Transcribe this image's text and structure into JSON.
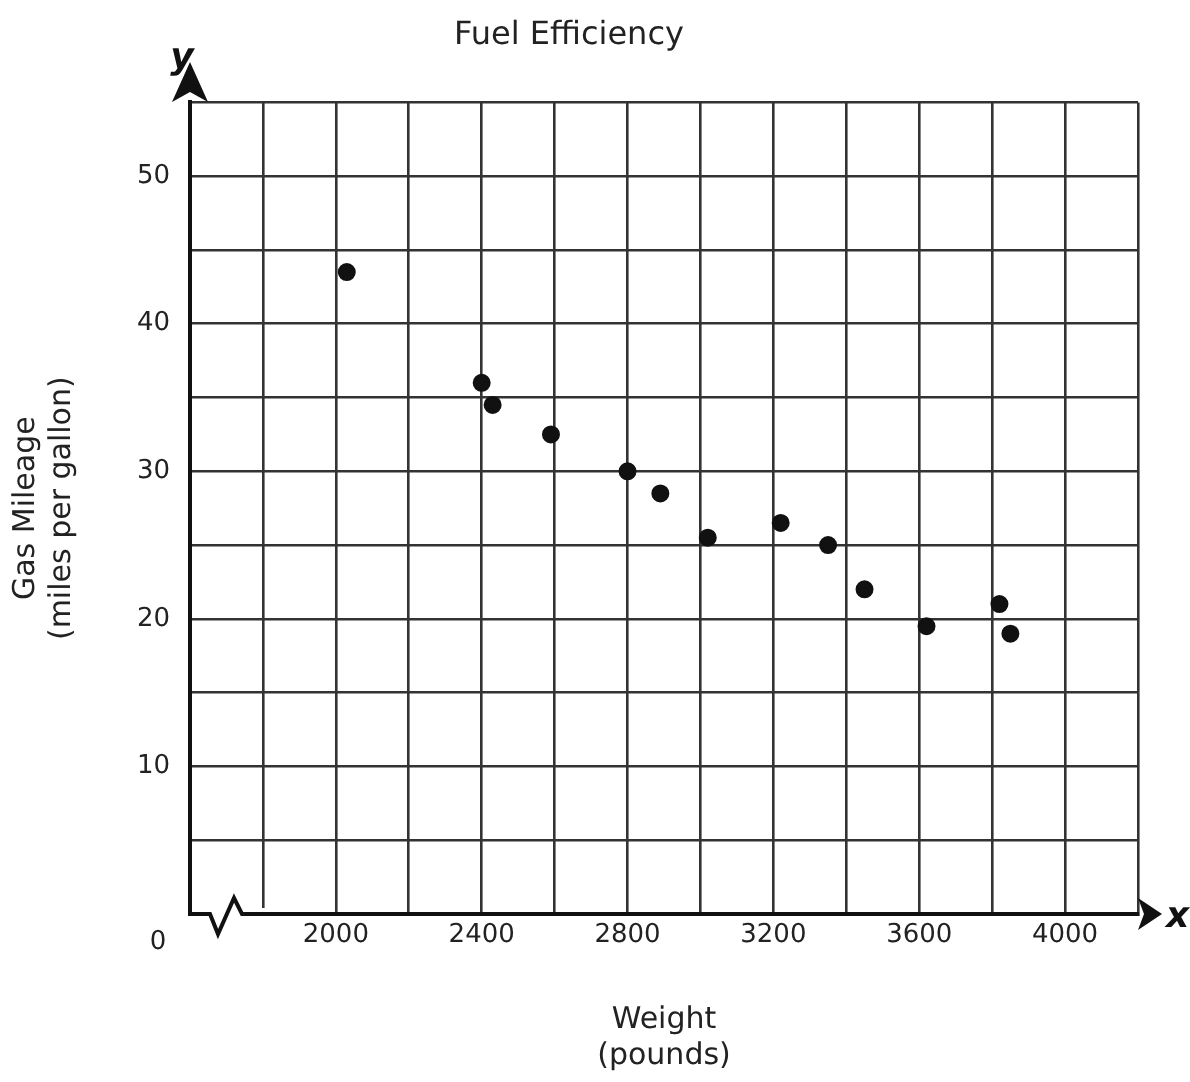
{
  "chart_data": {
    "type": "scatter",
    "title": "Fuel Efficiency",
    "xlabel": "Weight\n(pounds)",
    "ylabel": "Gas Mileage\n(miles per gallon)",
    "annotations": [
      "x",
      "y",
      "0"
    ],
    "series": [
      {
        "color": "#111111",
        "x": [
          2030,
          2400,
          2430,
          2590,
          2800,
          2890,
          3020,
          3220,
          3350,
          3450,
          3620,
          3820,
          3850
        ],
        "values": [
          43.5,
          36,
          34.5,
          32.5,
          30,
          28.5,
          25.5,
          26.5,
          25,
          22,
          19.5,
          21,
          19
        ]
      }
    ],
    "marker": "circle",
    "xlim": [
      1600,
      4200
    ],
    "xticks": [
      {
        "value": 1600,
        "label": null
      },
      {
        "value": 1800,
        "label": null
      },
      2000,
      {
        "value": 2200,
        "label": null
      },
      2400,
      {
        "value": 2600,
        "label": null
      },
      2800,
      {
        "value": 3000,
        "label": null
      },
      3200,
      {
        "value": 3400,
        "label": null
      },
      3600,
      {
        "value": 3800,
        "label": null
      },
      4000,
      {
        "value": 4200,
        "label": null
      }
    ],
    "ylim": [
      0,
      55
    ],
    "yticks": [
      {
        "value": 0,
        "label": null
      },
      {
        "value": 5,
        "label": null
      },
      10,
      {
        "value": 15,
        "label": null
      },
      20,
      {
        "value": 25,
        "label": null
      },
      30,
      {
        "value": 35,
        "label": null
      },
      40,
      {
        "value": 45,
        "label": null
      },
      50,
      {
        "value": 55,
        "label": null
      }
    ],
    "grid": true,
    "legend": false
  }
}
